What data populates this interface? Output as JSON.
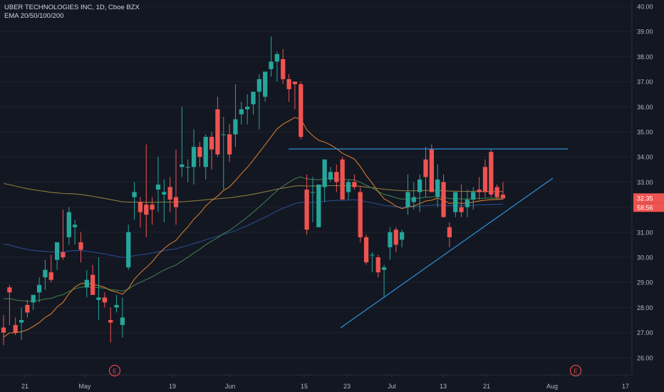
{
  "header": {
    "symbol_line": "UBER TECHNOLOGIES INC, 1D, Cboe BZX",
    "indicator_line": "EMA 20/50/100/200"
  },
  "price_badge": {
    "price": "32.35",
    "countdown": "58:56"
  },
  "earnings_marker": "E",
  "colors": {
    "background": "#131722",
    "grid": "#1e222d",
    "up": "#26a69a",
    "down": "#ef5350",
    "ema20": "#d17a2c",
    "ema50": "#3e7a4a",
    "ema100": "#2a4b8d",
    "ema200": "#8a7a3d",
    "trendline": "#2f8fd8",
    "earnings": "#e04848"
  },
  "chart_data": {
    "type": "candlestick",
    "title": "UBER TECHNOLOGIES INC, 1D, Cboe BZX",
    "ylim": [
      25.6,
      40.2
    ],
    "y_ticks": [
      "26.00",
      "27.00",
      "28.00",
      "29.00",
      "30.00",
      "31.00",
      "32.00",
      "33.00",
      "34.00",
      "35.00",
      "36.00",
      "37.00",
      "38.00",
      "39.00",
      "40.00"
    ],
    "x_ticks": [
      {
        "label": "21",
        "index": 1
      },
      {
        "label": "May",
        "index": 7
      },
      {
        "label": "19",
        "index": 14
      },
      {
        "label": "Jun",
        "index": 19
      },
      {
        "label": "15",
        "index": 25
      },
      {
        "label": "23",
        "index": 29
      },
      {
        "label": "Jul",
        "index": 32
      },
      {
        "label": "13",
        "index": 36
      },
      {
        "label": "21",
        "index": 40
      },
      {
        "label": "Aug",
        "index": 45
      },
      {
        "label": "17",
        "index": 51
      }
    ],
    "earnings_indices": [
      9,
      47
    ],
    "last_price": 32.35,
    "candles": [
      {
        "o": 27.2,
        "h": 27.8,
        "l": 26.5,
        "c": 27.0
      },
      {
        "o": 28.0,
        "h": 28.7,
        "l": 27.3,
        "c": 28.7
      },
      {
        "o": 27.4,
        "h": 28.2,
        "l": 27.0,
        "c": 27.0
      },
      {
        "o": 27.9,
        "h": 28.9,
        "l": 26.7,
        "c": 27.3
      },
      {
        "o": 28.2,
        "h": 28.6,
        "l": 27.5,
        "c": 27.9
      },
      {
        "o": 28.3,
        "h": 28.8,
        "l": 27.9,
        "c": 28.7
      },
      {
        "o": 28.6,
        "h": 29.8,
        "l": 28.2,
        "c": 29.6
      },
      {
        "o": 29.4,
        "h": 30.5,
        "l": 29.0,
        "c": 30.1
      },
      {
        "o": 30.0,
        "h": 31.7,
        "l": 29.6,
        "c": 31.0
      },
      {
        "o": 31.0,
        "h": 32.1,
        "l": 30.3,
        "c": 31.4
      },
      {
        "o": 30.4,
        "h": 30.8,
        "l": 29.6,
        "c": 30.1
      },
      {
        "o": 29.0,
        "h": 29.2,
        "l": 28.3,
        "c": 28.3
      },
      {
        "o": 28.4,
        "h": 28.8,
        "l": 27.3,
        "c": 27.5
      },
      {
        "o": 28.0,
        "h": 28.6,
        "l": 27.8,
        "c": 28.2
      },
      {
        "o": 27.7,
        "h": 28.5,
        "l": 27.2,
        "c": 27.3
      },
      {
        "o": 29.7,
        "h": 31.5,
        "l": 29.5,
        "c": 31.0
      },
      {
        "o": 32.6,
        "h": 33.0,
        "l": 32.0,
        "c": 32.8
      },
      {
        "o": 32.2,
        "h": 32.8,
        "l": 31.5,
        "c": 31.8
      },
      {
        "o": 31.6,
        "h": 34.1,
        "l": 30.6,
        "c": 32.8
      },
      {
        "o": 32.5,
        "h": 32.9,
        "l": 31.2,
        "c": 32.0
      },
      {
        "o": 32.0,
        "h": 34.5,
        "l": 31.4,
        "c": 33.0
      },
      {
        "o": 32.7,
        "h": 33.2,
        "l": 31.5,
        "c": 32.5
      },
      {
        "o": 32.5,
        "h": 33.4,
        "l": 31.6,
        "c": 32.3
      }
    ],
    "segments": [
      {
        "start_index": 0,
        "candles": [
          {
            "o": 27.0,
            "h": 28.7,
            "l": 26.5,
            "c": 27.2
          }
        ]
      }
    ]
  }
}
